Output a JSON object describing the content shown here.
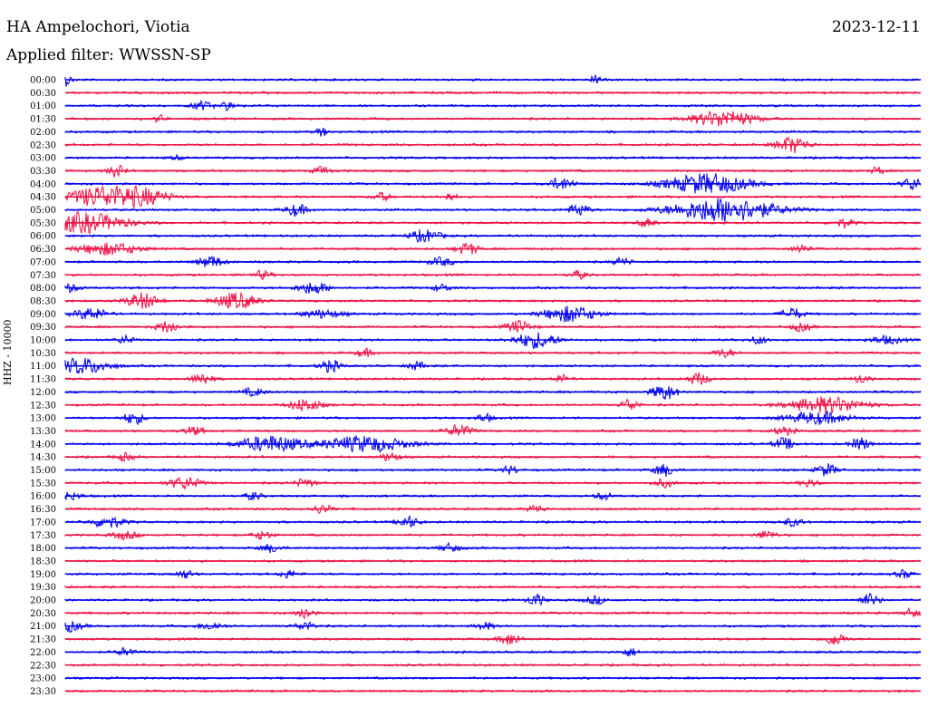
{
  "header": {
    "station": "HA Ampelochori, Viotia",
    "date": "2023-12-11",
    "filter_text": "Applied filter: WWSSN-SP"
  },
  "axis": {
    "channel_label": "HHZ - 10000"
  },
  "colors": {
    "trace_even": "#0000ee",
    "trace_odd": "#ee1144"
  },
  "traces": [
    {
      "time": "00:00",
      "color": "blue",
      "bursts": [
        [
          0.0,
          0.6,
          3
        ],
        [
          0.62,
          0.5,
          2
        ]
      ]
    },
    {
      "time": "00:30",
      "color": "red",
      "bursts": []
    },
    {
      "time": "01:00",
      "color": "blue",
      "bursts": [
        [
          0.16,
          1.0,
          2
        ],
        [
          0.19,
          0.8,
          2
        ]
      ]
    },
    {
      "time": "01:30",
      "color": "red",
      "bursts": [
        [
          0.11,
          0.5,
          2
        ],
        [
          0.77,
          3.0,
          4
        ]
      ]
    },
    {
      "time": "02:00",
      "color": "blue",
      "bursts": [
        [
          0.3,
          0.6,
          2
        ]
      ]
    },
    {
      "time": "02:30",
      "color": "red",
      "bursts": [
        [
          0.85,
          1.5,
          4
        ]
      ]
    },
    {
      "time": "03:00",
      "color": "blue",
      "bursts": [
        [
          0.13,
          0.6,
          1
        ]
      ]
    },
    {
      "time": "03:30",
      "color": "red",
      "bursts": [
        [
          0.06,
          0.8,
          3
        ],
        [
          0.3,
          0.8,
          2
        ],
        [
          0.95,
          0.6,
          2
        ]
      ]
    },
    {
      "time": "04:00",
      "color": "blue",
      "bursts": [
        [
          0.58,
          1.2,
          3
        ],
        [
          0.75,
          4.0,
          5
        ],
        [
          0.99,
          1.0,
          3
        ]
      ]
    },
    {
      "time": "04:30",
      "color": "red",
      "bursts": [
        [
          0.04,
          3.0,
          5
        ],
        [
          0.09,
          2.5,
          4
        ],
        [
          0.37,
          0.8,
          2
        ],
        [
          0.45,
          0.6,
          2
        ]
      ]
    },
    {
      "time": "05:00",
      "color": "blue",
      "bursts": [
        [
          0.27,
          1.0,
          3
        ],
        [
          0.6,
          1.0,
          3
        ],
        [
          0.77,
          5.0,
          6
        ]
      ]
    },
    {
      "time": "05:30",
      "color": "red",
      "bursts": [
        [
          0.02,
          4.0,
          5
        ],
        [
          0.68,
          0.8,
          2
        ],
        [
          0.91,
          1.0,
          2
        ]
      ]
    },
    {
      "time": "06:00",
      "color": "blue",
      "bursts": [
        [
          0.42,
          1.5,
          3
        ]
      ]
    },
    {
      "time": "06:30",
      "color": "red",
      "bursts": [
        [
          0.05,
          3.0,
          3
        ],
        [
          0.47,
          1.0,
          3
        ],
        [
          0.86,
          0.8,
          2
        ]
      ]
    },
    {
      "time": "07:00",
      "color": "blue",
      "bursts": [
        [
          0.17,
          1.2,
          3
        ],
        [
          0.44,
          1.2,
          2
        ],
        [
          0.65,
          0.8,
          2
        ]
      ]
    },
    {
      "time": "07:30",
      "color": "red",
      "bursts": [
        [
          0.23,
          0.8,
          2
        ],
        [
          0.6,
          0.8,
          2
        ]
      ]
    },
    {
      "time": "08:00",
      "color": "blue",
      "bursts": [
        [
          0.0,
          1.5,
          2
        ],
        [
          0.29,
          1.5,
          3
        ],
        [
          0.44,
          0.8,
          2
        ]
      ]
    },
    {
      "time": "08:30",
      "color": "red",
      "bursts": [
        [
          0.09,
          1.5,
          4
        ],
        [
          0.2,
          2.0,
          4
        ]
      ]
    },
    {
      "time": "09:00",
      "color": "blue",
      "bursts": [
        [
          0.03,
          1.5,
          3
        ],
        [
          0.3,
          2.0,
          2
        ],
        [
          0.59,
          2.5,
          4
        ],
        [
          0.85,
          1.0,
          3
        ]
      ]
    },
    {
      "time": "09:30",
      "color": "red",
      "bursts": [
        [
          0.12,
          1.0,
          3
        ],
        [
          0.53,
          1.2,
          3
        ],
        [
          0.86,
          1.0,
          2
        ]
      ]
    },
    {
      "time": "10:00",
      "color": "blue",
      "bursts": [
        [
          0.07,
          0.8,
          2
        ],
        [
          0.55,
          2.0,
          4
        ],
        [
          0.81,
          0.8,
          2
        ],
        [
          0.96,
          1.5,
          2
        ]
      ]
    },
    {
      "time": "10:30",
      "color": "red",
      "bursts": [
        [
          0.35,
          0.8,
          2
        ],
        [
          0.77,
          1.0,
          2
        ]
      ]
    },
    {
      "time": "11:00",
      "color": "blue",
      "bursts": [
        [
          0.02,
          2.5,
          4
        ],
        [
          0.31,
          1.0,
          3
        ],
        [
          0.41,
          0.8,
          2
        ]
      ]
    },
    {
      "time": "11:30",
      "color": "red",
      "bursts": [
        [
          0.16,
          1.0,
          3
        ],
        [
          0.58,
          0.8,
          2
        ],
        [
          0.74,
          1.0,
          3
        ],
        [
          0.93,
          0.8,
          2
        ]
      ]
    },
    {
      "time": "12:00",
      "color": "blue",
      "bursts": [
        [
          0.22,
          1.0,
          2
        ],
        [
          0.7,
          1.2,
          4
        ]
      ]
    },
    {
      "time": "12:30",
      "color": "red",
      "bursts": [
        [
          0.28,
          1.5,
          3
        ],
        [
          0.66,
          0.8,
          3
        ],
        [
          0.89,
          3.5,
          4
        ]
      ]
    },
    {
      "time": "13:00",
      "color": "blue",
      "bursts": [
        [
          0.08,
          1.0,
          3
        ],
        [
          0.49,
          0.8,
          2
        ],
        [
          0.88,
          3.0,
          3
        ]
      ]
    },
    {
      "time": "13:30",
      "color": "red",
      "bursts": [
        [
          0.15,
          1.0,
          2
        ],
        [
          0.46,
          1.2,
          3
        ],
        [
          0.84,
          1.0,
          2
        ]
      ]
    },
    {
      "time": "14:00",
      "color": "blue",
      "bursts": [
        [
          0.24,
          3.0,
          4
        ],
        [
          0.35,
          4.0,
          4
        ],
        [
          0.84,
          1.0,
          3
        ],
        [
          0.93,
          1.0,
          3
        ]
      ]
    },
    {
      "time": "14:30",
      "color": "red",
      "bursts": [
        [
          0.07,
          0.8,
          2
        ],
        [
          0.38,
          1.0,
          2
        ]
      ]
    },
    {
      "time": "15:00",
      "color": "blue",
      "bursts": [
        [
          0.52,
          0.8,
          2
        ],
        [
          0.7,
          1.0,
          3
        ],
        [
          0.89,
          1.0,
          3
        ]
      ]
    },
    {
      "time": "15:30",
      "color": "red",
      "bursts": [
        [
          0.14,
          1.5,
          3
        ],
        [
          0.28,
          1.0,
          2
        ],
        [
          0.7,
          1.0,
          2
        ],
        [
          0.87,
          0.8,
          2
        ]
      ]
    },
    {
      "time": "16:00",
      "color": "blue",
      "bursts": [
        [
          0.0,
          1.5,
          2
        ],
        [
          0.22,
          0.8,
          2
        ],
        [
          0.63,
          0.8,
          2
        ]
      ]
    },
    {
      "time": "16:30",
      "color": "red",
      "bursts": [
        [
          0.3,
          1.0,
          2
        ],
        [
          0.55,
          0.8,
          2
        ]
      ]
    },
    {
      "time": "17:00",
      "color": "blue",
      "bursts": [
        [
          0.05,
          1.5,
          3
        ],
        [
          0.4,
          1.0,
          3
        ],
        [
          0.85,
          1.0,
          2
        ]
      ]
    },
    {
      "time": "17:30",
      "color": "red",
      "bursts": [
        [
          0.07,
          1.2,
          2
        ],
        [
          0.23,
          1.0,
          2
        ],
        [
          0.82,
          1.0,
          2
        ]
      ]
    },
    {
      "time": "18:00",
      "color": "blue",
      "bursts": [
        [
          0.24,
          1.0,
          2
        ],
        [
          0.45,
          1.0,
          2
        ]
      ]
    },
    {
      "time": "18:30",
      "color": "red",
      "bursts": []
    },
    {
      "time": "19:00",
      "color": "blue",
      "bursts": [
        [
          0.14,
          0.8,
          2
        ],
        [
          0.26,
          0.8,
          2
        ],
        [
          0.98,
          0.8,
          2
        ]
      ]
    },
    {
      "time": "19:30",
      "color": "red",
      "bursts": []
    },
    {
      "time": "20:00",
      "color": "blue",
      "bursts": [
        [
          0.55,
          0.8,
          3
        ],
        [
          0.62,
          1.0,
          2
        ],
        [
          0.94,
          1.0,
          3
        ]
      ]
    },
    {
      "time": "20:30",
      "color": "red",
      "bursts": [
        [
          0.28,
          0.8,
          3
        ],
        [
          0.99,
          0.8,
          2
        ]
      ]
    },
    {
      "time": "21:00",
      "color": "blue",
      "bursts": [
        [
          0.0,
          1.5,
          3
        ],
        [
          0.17,
          1.2,
          2
        ],
        [
          0.28,
          1.0,
          2
        ],
        [
          0.49,
          0.8,
          2
        ]
      ]
    },
    {
      "time": "21:30",
      "color": "red",
      "bursts": [
        [
          0.52,
          1.0,
          3
        ],
        [
          0.9,
          1.0,
          3
        ]
      ]
    },
    {
      "time": "22:00",
      "color": "blue",
      "bursts": [
        [
          0.07,
          0.8,
          2
        ],
        [
          0.66,
          0.8,
          2
        ]
      ]
    },
    {
      "time": "22:30",
      "color": "red",
      "bursts": []
    },
    {
      "time": "23:00",
      "color": "blue",
      "bursts": []
    },
    {
      "time": "23:30",
      "color": "red",
      "bursts": []
    }
  ]
}
